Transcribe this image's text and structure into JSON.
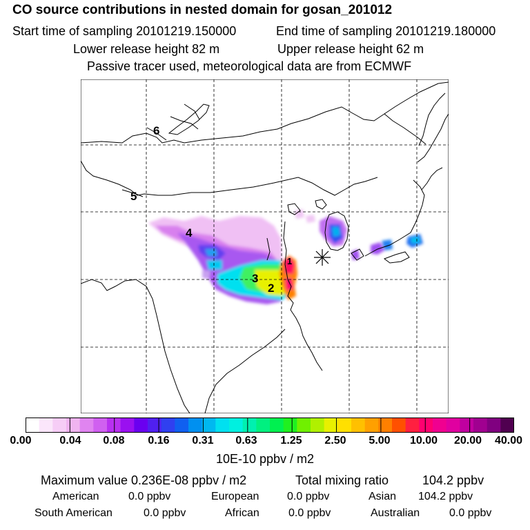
{
  "header": {
    "title": "CO  source contributions in nested domain for gosan_201012",
    "start_label": "Start time of sampling 20101219.150000",
    "end_label": "End time of sampling 20101219.180000",
    "lower_label": "Lower release height   82 m",
    "upper_label": "Upper release height   62 m",
    "tracer_label": "Passive tracer used, meteorological data are from ECMWF"
  },
  "map": {
    "contour_labels": [
      "6",
      "5",
      "4",
      "3",
      "2",
      "1"
    ],
    "receptor_marker": "asterisk"
  },
  "colorbar": {
    "ticks": [
      "0.00",
      "0.04",
      "0.08",
      "0.16",
      "0.31",
      "0.63",
      "1.25",
      "2.50",
      "5.00",
      "10.00",
      "20.00",
      "40.00"
    ],
    "unit": "10E-10 ppbv / m2",
    "colors": [
      "#ffffff",
      "#fbe6fb",
      "#f6cdf6",
      "#f0b4f0",
      "#e084f0",
      "#d060f0",
      "#b830f0",
      "#9a10f0",
      "#6a00f0",
      "#5020f0",
      "#3040f0",
      "#1060f0",
      "#0090f0",
      "#00b8f0",
      "#00e0f0",
      "#00f0e0",
      "#00f0b0",
      "#00f080",
      "#00f050",
      "#20f020",
      "#70f000",
      "#b0f000",
      "#e8f000",
      "#ffe000",
      "#ffc000",
      "#ffa000",
      "#ff8000",
      "#ff5000",
      "#ff2040",
      "#ff0070",
      "#f00090",
      "#e000a0",
      "#c000a0",
      "#a00090",
      "#800080",
      "#500050"
    ]
  },
  "stats": {
    "max_label": "Maximum value  0.236E-08 ppbv / m2",
    "total_label": "Total mixing ratio",
    "total_value": "104.2 ppbv",
    "american_label": "American",
    "american_value": "0.0 ppbv",
    "european_label": "European",
    "european_value": "0.0 ppbv",
    "asian_label": "Asian",
    "asian_value": "104.2 ppbv",
    "south_american_label": "South American",
    "south_american_value": "0.0 ppbv",
    "african_label": "African",
    "african_value": "0.0 ppbv",
    "australian_label": "Australian",
    "australian_value": "0.0 ppbv"
  }
}
